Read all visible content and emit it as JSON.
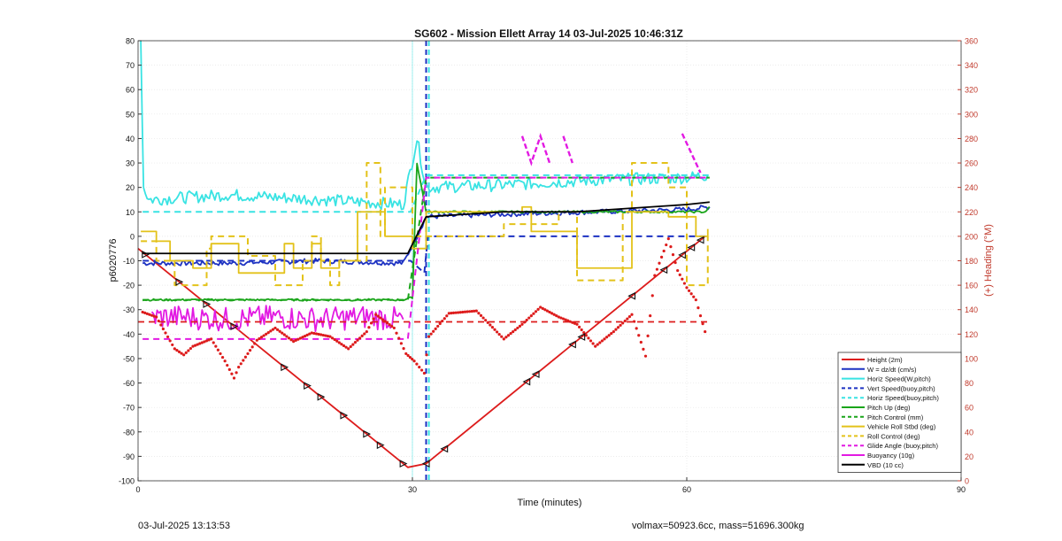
{
  "footer": {
    "timestamp": "03-Jul-2025 13:13:53",
    "mass_info": "volmax=50923.6cc, mass=51696.300kg"
  },
  "chart_data": {
    "type": "line",
    "title": "SG602 - Mission Ellett Array 14 03-Jul-2025 10:46:31Z",
    "xlabel": "Time (minutes)",
    "ylabel": "p6020776",
    "y2label": "(+) Heading (°M)",
    "xlim": [
      0,
      90
    ],
    "ylim": [
      -100,
      80
    ],
    "y2lim": [
      0,
      360
    ],
    "xticks": [
      0,
      30,
      60,
      90
    ],
    "yticks": [
      -100,
      -90,
      -80,
      -70,
      -60,
      -50,
      -40,
      -30,
      -20,
      -10,
      0,
      10,
      20,
      30,
      40,
      50,
      60,
      70,
      80
    ],
    "y2ticks": [
      0,
      20,
      40,
      60,
      80,
      100,
      120,
      140,
      160,
      180,
      200,
      220,
      240,
      260,
      280,
      300,
      320,
      340,
      360
    ],
    "grid": true,
    "legend_position": "bottom-right",
    "colors": {
      "red": "#dd1c1c",
      "blue": "#1d32c2",
      "cyan": "#39e3e3",
      "green": "#1aa51a",
      "yellow": "#e3c21a",
      "magenta": "#e21ae2",
      "black": "#000000",
      "right_axis": "#c0392b"
    },
    "legend": [
      {
        "name": "Height (2m)",
        "color": "red",
        "dash": false
      },
      {
        "name": "W = dz/dt (cm/s)",
        "color": "blue",
        "dash": false
      },
      {
        "name": "Horiz Speed(W,pitch)",
        "color": "cyan",
        "dash": false
      },
      {
        "name": "Vert Speed(buoy,pitch)",
        "color": "blue",
        "dash": true
      },
      {
        "name": "Horiz Speed(buoy,pitch)",
        "color": "cyan",
        "dash": true
      },
      {
        "name": "Pitch Up (deg)",
        "color": "green",
        "dash": false
      },
      {
        "name": "Pitch Control (mm)",
        "color": "green",
        "dash": true
      },
      {
        "name": "Vehicle Roll Stbd (deg)",
        "color": "yellow",
        "dash": false
      },
      {
        "name": "Roll Control (deg)",
        "color": "yellow",
        "dash": true
      },
      {
        "name": "Glide Angle (buoy,pitch)",
        "color": "magenta",
        "dash": true
      },
      {
        "name": "Buoyancy (10g)",
        "color": "magenta",
        "dash": false
      },
      {
        "name": "VBD (10 cc)",
        "color": "black",
        "dash": false
      }
    ],
    "series": [
      {
        "name": "Height (2m)",
        "color": "red",
        "dash": false,
        "x": [
          0,
          29.5,
          31.5,
          62
        ],
        "y": [
          -5,
          -94.5,
          -93,
          0
        ]
      },
      {
        "name": "W = dz/dt (cm/s)",
        "color": "blue",
        "dash": false,
        "noise": 1,
        "x": [
          0.5,
          10,
          20,
          29,
          30.5,
          31.5,
          40,
          50,
          60,
          62.5
        ],
        "y": [
          -11,
          -11,
          -10,
          -11,
          0,
          8,
          9,
          10,
          11,
          12
        ]
      },
      {
        "name": "Horiz Speed(W,pitch)",
        "color": "cyan",
        "dash": false,
        "noise": 2.5,
        "x": [
          0.3,
          0.6,
          1.2,
          10,
          20,
          29,
          30.5,
          31.5,
          40,
          50,
          60,
          62.3
        ],
        "y": [
          80,
          20,
          15,
          17,
          15,
          13,
          40,
          20,
          21,
          23,
          24,
          25
        ]
      },
      {
        "name": "Vert Speed(buoy,pitch)",
        "color": "blue",
        "dash": true,
        "x": [
          0.5,
          29.8,
          31.3,
          31.7,
          62.5
        ],
        "y": [
          -10,
          -10,
          -15,
          0,
          0
        ]
      },
      {
        "name": "Horiz Speed(buoy,pitch)",
        "color": "cyan",
        "dash": true,
        "x": [
          0.5,
          29.8,
          31.5,
          62.5
        ],
        "y": [
          10,
          10,
          25,
          25
        ]
      },
      {
        "name": "Pitch Up (deg)",
        "color": "green",
        "dash": false,
        "noise": 0.4,
        "x": [
          0.5,
          29,
          30,
          30.5,
          31.5,
          62,
          62.5
        ],
        "y": [
          -26,
          -26,
          -25,
          30,
          10,
          10,
          12
        ]
      },
      {
        "name": "Pitch Control (mm)",
        "color": "green",
        "dash": true,
        "x": [
          0.5,
          29.5,
          31.5,
          62.5
        ],
        "y": [
          -26,
          -26,
          24,
          24
        ]
      },
      {
        "name": "Vehicle Roll Stbd (deg)",
        "color": "yellow",
        "dash": false,
        "x": [
          0.3,
          2,
          3.5,
          6,
          8,
          10,
          11,
          14,
          16,
          17,
          19,
          20,
          22,
          24,
          26,
          27,
          29,
          30,
          31.5,
          34,
          40,
          42,
          43,
          47,
          48,
          53,
          54,
          58,
          61,
          62.3
        ],
        "y": [
          2,
          -2,
          -10,
          -13,
          -3,
          -3,
          -15,
          -15,
          -3,
          -13,
          -3,
          -13,
          -10,
          10,
          10,
          0,
          0,
          -5,
          10,
          10,
          10,
          12,
          2,
          2,
          -13,
          -13,
          10,
          8,
          0,
          3
        ]
      },
      {
        "name": "Roll Control (deg)",
        "color": "yellow",
        "dash": true,
        "x": [
          0.3,
          1.5,
          2,
          4,
          6,
          7.5,
          8,
          10,
          12,
          15,
          17,
          18,
          19,
          20,
          21,
          22,
          25,
          26,
          26.5,
          27,
          28,
          30,
          31.5,
          34,
          40,
          44,
          46,
          48,
          50,
          53,
          54,
          58,
          60,
          62.3
        ],
        "y": [
          -2,
          -2,
          -10,
          -20,
          -20,
          -5,
          0,
          0,
          -8,
          -20,
          -20,
          -10,
          0,
          -10,
          -20,
          -10,
          30,
          30,
          0,
          20,
          20,
          0,
          0,
          0,
          5,
          5,
          10,
          -18,
          -18,
          10,
          30,
          20,
          -20,
          0
        ]
      },
      {
        "name": "Glide Angle (buoy,pitch)",
        "color": "magenta",
        "dash": true,
        "x": [
          0.5,
          29.5,
          31.5,
          62.5
        ],
        "y": [
          -42,
          -42,
          24,
          24
        ]
      },
      {
        "name": "Buoyancy (10g)",
        "color": "magenta",
        "dash": false,
        "noise": 5,
        "x": [
          1.5,
          5,
          10,
          15,
          20,
          25,
          29
        ],
        "y": [
          -33,
          -33,
          -34,
          -33,
          -34,
          -33,
          -34
        ]
      },
      {
        "name": "VBD (10 cc)",
        "color": "black",
        "dash": false,
        "x": [
          0.5,
          29.5,
          31.5,
          40,
          48,
          52,
          56,
          60,
          62.5
        ],
        "y": [
          -7,
          -7,
          8,
          10,
          10,
          11,
          12,
          13,
          14
        ]
      }
    ],
    "magenta_spikes": [
      {
        "x": [
          42,
          43,
          44,
          45
        ],
        "y": [
          41,
          30,
          41,
          30
        ]
      },
      {
        "x": [
          46.5,
          47.5
        ],
        "y": [
          41,
          30
        ]
      },
      {
        "x": [
          59.5,
          61.5
        ],
        "y": [
          42,
          26
        ]
      }
    ],
    "heading": {
      "name": "(+) Heading (°M)",
      "color": "red",
      "axis": "right",
      "x": [
        0.5,
        2,
        4,
        5,
        6,
        8,
        9.5,
        10.5,
        11,
        13,
        15,
        17,
        19,
        21,
        23,
        25,
        26,
        28,
        29.3,
        30.2,
        31.3,
        31.8,
        34,
        37,
        40,
        42,
        44,
        46,
        48,
        50,
        52,
        54,
        55.5,
        56.5,
        58,
        59,
        60,
        61,
        62,
        62.3
      ],
      "y": [
        138,
        134,
        108,
        103,
        110,
        116,
        98,
        84,
        93,
        115,
        125,
        114,
        121,
        118,
        108,
        122,
        136,
        125,
        104,
        98,
        88,
        118,
        137,
        139,
        116,
        128,
        142,
        134,
        128,
        110,
        122,
        136,
        102,
        168,
        198,
        172,
        158,
        148,
        122,
        117
      ]
    },
    "heading_ref": {
      "color": "red",
      "axis": "right",
      "dash": true,
      "x": [
        0,
        62.5
      ],
      "y": [
        130,
        130
      ]
    },
    "vlines": [
      {
        "x": 31.5,
        "color": "blue",
        "dash": true
      },
      {
        "x": 31.8,
        "color": "cyan",
        "dash": true
      },
      {
        "x": 30,
        "color": "cyan",
        "dash": false
      }
    ],
    "triangles": [
      {
        "x": 0.8,
        "dir": "down"
      },
      {
        "x": 4.5,
        "dir": "down"
      },
      {
        "x": 7.5,
        "dir": "down"
      },
      {
        "x": 10.5,
        "dir": "down"
      },
      {
        "x": 16,
        "dir": "down"
      },
      {
        "x": 18.5,
        "dir": "down"
      },
      {
        "x": 20,
        "dir": "down"
      },
      {
        "x": 22.5,
        "dir": "down"
      },
      {
        "x": 25,
        "dir": "down"
      },
      {
        "x": 26.5,
        "dir": "down"
      },
      {
        "x": 29,
        "dir": "down"
      },
      {
        "x": 31.5,
        "dir": "up"
      },
      {
        "x": 33.5,
        "dir": "up"
      },
      {
        "x": 42.5,
        "dir": "up"
      },
      {
        "x": 43.5,
        "dir": "up"
      },
      {
        "x": 47.5,
        "dir": "up"
      },
      {
        "x": 48.5,
        "dir": "up"
      },
      {
        "x": 54,
        "dir": "up"
      },
      {
        "x": 57.5,
        "dir": "up"
      },
      {
        "x": 59.5,
        "dir": "up"
      },
      {
        "x": 60.5,
        "dir": "up"
      },
      {
        "x": 61.5,
        "dir": "up"
      }
    ]
  }
}
